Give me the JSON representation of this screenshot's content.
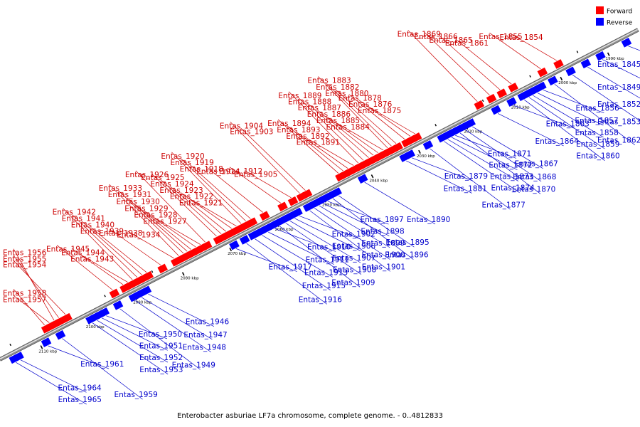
{
  "caption": "Enterobacter asburiae LF7a chromosome, complete genome. - 0..4812833",
  "legend": {
    "forward_label": "Forward",
    "reverse_label": "Reverse",
    "forward_color": "#ff0000",
    "reverse_color": "#0000ff"
  },
  "colors": {
    "forward_text": "#cc0000",
    "reverse_text": "#0000cc",
    "backbone_dark": "#555555",
    "backbone_light": "#e8e8e8"
  },
  "ticks": [
    {
      "kbp": 1990,
      "label": "1990 kbp"
    },
    {
      "kbp": 2000,
      "label": "2000 kbp"
    },
    {
      "kbp": 2010,
      "label": "2010 kbp"
    },
    {
      "kbp": 2020,
      "label": "2020 kbp"
    },
    {
      "kbp": 2030,
      "label": "2030 kbp"
    },
    {
      "kbp": 2040,
      "label": "2040 kbp"
    },
    {
      "kbp": 2050,
      "label": "2050 kbp"
    },
    {
      "kbp": 2060,
      "label": "2060 kbp"
    },
    {
      "kbp": 2070,
      "label": "2070 kbp"
    },
    {
      "kbp": 2080,
      "label": "2080 kbp"
    },
    {
      "kbp": 2090,
      "label": "2090 kbp"
    },
    {
      "kbp": 2100,
      "label": "2100 kbp"
    },
    {
      "kbp": 2110,
      "label": "2110 kbp"
    }
  ],
  "reverse_genes": [
    {
      "name": "Entas_1845",
      "kbp": 1986.0
    },
    {
      "name": "Entas_1849",
      "kbp": 1991.5
    },
    {
      "name": "Entas_1852",
      "kbp": 1994.6
    },
    {
      "name": "Entas_1853",
      "kbp": 1997.8
    },
    {
      "name": "Entas_1856",
      "kbp": 2004.0
    },
    {
      "name": "Entas_1857",
      "kbp": 2005.2
    },
    {
      "name": "Entas_1858",
      "kbp": 2006.2
    },
    {
      "name": "Entas_1859",
      "kbp": 2007.0
    },
    {
      "name": "Entas_1860",
      "kbp": 2008.0
    },
    {
      "name": "Entas_1862",
      "kbp": 2001.6
    },
    {
      "name": "Entas_1863",
      "kbp": 2010.3
    },
    {
      "name": "Entas_1864",
      "kbp": 2013.6
    },
    {
      "name": "Entas_1867",
      "kbp": 2019.0
    },
    {
      "name": "Entas_1868",
      "kbp": 2020.4
    },
    {
      "name": "Entas_1870",
      "kbp": 2021.6
    },
    {
      "name": "Entas_1871",
      "kbp": 2022.6
    },
    {
      "name": "Entas_1872",
      "kbp": 2023.4
    },
    {
      "name": "Entas_1873",
      "kbp": 2024.2
    },
    {
      "name": "Entas_1874",
      "kbp": 2025.0
    },
    {
      "name": "Entas_1877",
      "kbp": 2028.0
    },
    {
      "name": "Entas_1879",
      "kbp": 2031.8
    },
    {
      "name": "Entas_1881",
      "kbp": 2033.0
    },
    {
      "name": "Entas_1890",
      "kbp": 2041.8
    },
    {
      "name": "Entas_1895",
      "kbp": 2047.3
    },
    {
      "name": "Entas_1896",
      "kbp": 2048.5
    },
    {
      "name": "Entas_1897",
      "kbp": 2049.6
    },
    {
      "name": "Entas_1898",
      "kbp": 2050.5
    },
    {
      "name": "Entas_1899",
      "kbp": 2051.4
    },
    {
      "name": "Entas_1900",
      "kbp": 2052.4
    },
    {
      "name": "Entas_1901",
      "kbp": 2053.4
    },
    {
      "name": "Entas_1902",
      "kbp": 2055.6
    },
    {
      "name": "Entas_1906",
      "kbp": 2056.6
    },
    {
      "name": "Entas_1907",
      "kbp": 2057.6
    },
    {
      "name": "Entas_1908",
      "kbp": 2058.5
    },
    {
      "name": "Entas_1909",
      "kbp": 2059.8
    },
    {
      "name": "Entas_1910",
      "kbp": 2060.8
    },
    {
      "name": "Entas_1911",
      "kbp": 2062.2
    },
    {
      "name": "Entas_1913",
      "kbp": 2063.5
    },
    {
      "name": "Entas_1915",
      "kbp": 2065.0
    },
    {
      "name": "Entas_1916",
      "kbp": 2066.8
    },
    {
      "name": "Entas_1917",
      "kbp": 2069.0
    },
    {
      "name": "Entas_1946",
      "kbp": 2087.6
    },
    {
      "name": "Entas_1947",
      "kbp": 2089.0
    },
    {
      "name": "Entas_1948",
      "kbp": 2090.3
    },
    {
      "name": "Entas_1949",
      "kbp": 2093.6
    },
    {
      "name": "Entas_1950",
      "kbp": 2096.5
    },
    {
      "name": "Entas_1951",
      "kbp": 2097.4
    },
    {
      "name": "Entas_1952",
      "kbp": 2098.4
    },
    {
      "name": "Entas_1953",
      "kbp": 2099.4
    },
    {
      "name": "Entas_1959",
      "kbp": 2105.8
    },
    {
      "name": "Entas_1961",
      "kbp": 2108.8
    },
    {
      "name": "Entas_1964",
      "kbp": 2114.6
    },
    {
      "name": "Entas_1965",
      "kbp": 2115.6
    }
  ],
  "forward_genes": [
    {
      "name": "Entas_1854",
      "kbp": 1999.2
    },
    {
      "name": "Entas_1855",
      "kbp": 2002.6
    },
    {
      "name": "Entas_1861",
      "kbp": 2008.8
    },
    {
      "name": "Entas_1865",
      "kbp": 2011.2
    },
    {
      "name": "Entas_1866",
      "kbp": 2013.4
    },
    {
      "name": "Entas_1869",
      "kbp": 2016.0
    },
    {
      "name": "Entas_1875",
      "kbp": 2029.2
    },
    {
      "name": "Entas_1876",
      "kbp": 2030.2
    },
    {
      "name": "Entas_1878",
      "kbp": 2031.4
    },
    {
      "name": "Entas_1880",
      "kbp": 2033.2
    },
    {
      "name": "Entas_1882",
      "kbp": 2034.2
    },
    {
      "name": "Entas_1883",
      "kbp": 2035.0
    },
    {
      "name": "Entas_1884",
      "kbp": 2035.9
    },
    {
      "name": "Entas_1885",
      "kbp": 2037.0
    },
    {
      "name": "Entas_1886",
      "kbp": 2038.0
    },
    {
      "name": "Entas_1887",
      "kbp": 2039.0
    },
    {
      "name": "Entas_1888",
      "kbp": 2040.1
    },
    {
      "name": "Entas_1889",
      "kbp": 2041.2
    },
    {
      "name": "Entas_1891",
      "kbp": 2042.2
    },
    {
      "name": "Entas_1892",
      "kbp": 2043.4
    },
    {
      "name": "Entas_1893",
      "kbp": 2044.4
    },
    {
      "name": "Entas_1894",
      "kbp": 2045.4
    },
    {
      "name": "Entas_1903",
      "kbp": 2052.4
    },
    {
      "name": "Entas_1904",
      "kbp": 2053.6
    },
    {
      "name": "Entas_1905",
      "kbp": 2055.4
    },
    {
      "name": "Entas_1912",
      "kbp": 2057.6
    },
    {
      "name": "Entas_1914",
      "kbp": 2061.4
    },
    {
      "name": "Entas_1918",
      "kbp": 2064.0
    },
    {
      "name": "Entas_1919",
      "kbp": 2065.0
    },
    {
      "name": "Entas_1920",
      "kbp": 2066.0
    },
    {
      "name": "Entas_1921",
      "kbp": 2067.0
    },
    {
      "name": "Entas_1922",
      "kbp": 2068.0
    },
    {
      "name": "Entas_1923",
      "kbp": 2069.2
    },
    {
      "name": "Entas_1924",
      "kbp": 2070.2
    },
    {
      "name": "Entas_1925",
      "kbp": 2071.2
    },
    {
      "name": "Entas_1926",
      "kbp": 2073.6
    },
    {
      "name": "Entas_1927",
      "kbp": 2074.6
    },
    {
      "name": "Entas_1928",
      "kbp": 2075.6
    },
    {
      "name": "Entas_1929",
      "kbp": 2076.6
    },
    {
      "name": "Entas_1930",
      "kbp": 2077.4
    },
    {
      "name": "Entas_1931",
      "kbp": 2078.2
    },
    {
      "name": "Entas_1933",
      "kbp": 2079.2
    },
    {
      "name": "Entas_1934",
      "kbp": 2080.2
    },
    {
      "name": "Entas_1938",
      "kbp": 2083.0
    },
    {
      "name": "Entas_1939",
      "kbp": 2086.0
    },
    {
      "name": "Entas_1940",
      "kbp": 2087.0
    },
    {
      "name": "Entas_1941",
      "kbp": 2088.0
    },
    {
      "name": "Entas_1942",
      "kbp": 2089.0
    },
    {
      "name": "Entas_1943",
      "kbp": 2090.0
    },
    {
      "name": "Entas_1944",
      "kbp": 2091.0
    },
    {
      "name": "Entas_1945",
      "kbp": 2093.2
    },
    {
      "name": "Entas_1954",
      "kbp": 2103.2
    },
    {
      "name": "Entas_1955",
      "kbp": 2104.6
    },
    {
      "name": "Entas_1956",
      "kbp": 2105.6
    },
    {
      "name": "Entas_1957",
      "kbp": 2106.6
    },
    {
      "name": "Entas_1958",
      "kbp": 2107.6
    }
  ]
}
